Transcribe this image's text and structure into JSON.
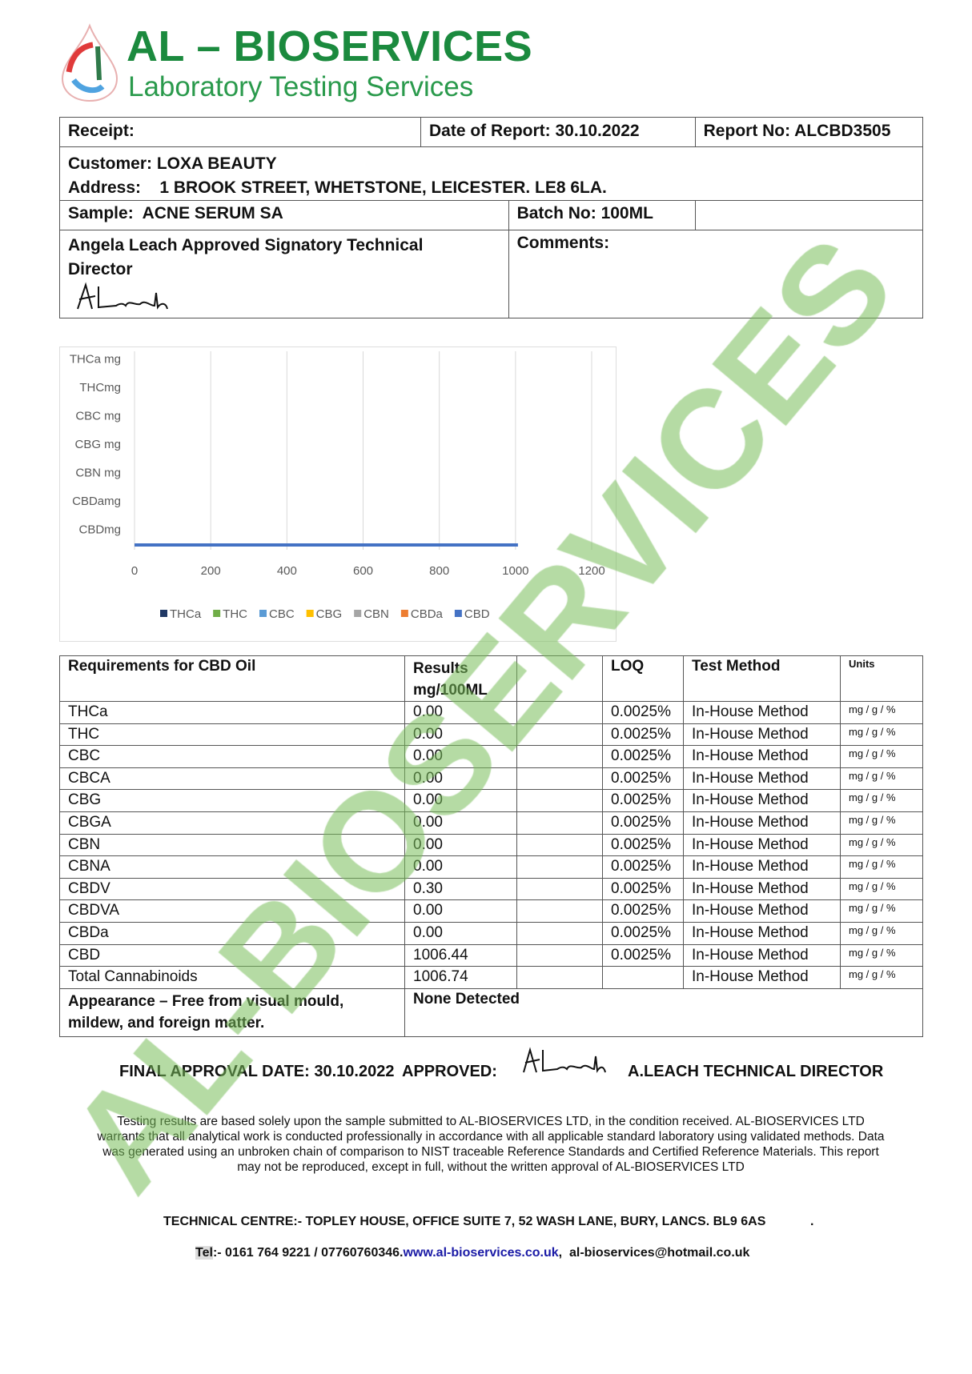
{
  "logo": {
    "title": "AL – BIOSERVICES",
    "subtitle": "Laboratory Testing Services"
  },
  "watermark": "AL-BIOSERVICES",
  "header": {
    "receipt": "Receipt:",
    "date_of_report": "Date of Report: 30.10.2022",
    "report_no": "Report No: ALCBD3505",
    "customer": "Customer: LOXA BEAUTY",
    "address": "Address:    1 BROOK STREET, WHETSTONE, LEICESTER. LE8 6LA.",
    "sample": "Sample:  ACNE SERUM SA",
    "batch_no": "Batch No: 100ML",
    "signatory": "Angela Leach Approved Signatory Technical Director",
    "signature": "ALeach",
    "comments": "Comments:"
  },
  "chart_data": {
    "type": "bar",
    "orientation": "horizontal",
    "categories": [
      "THCa mg",
      "THCmg",
      "CBC mg",
      "CBG mg",
      "CBN mg",
      "CBDamg",
      "CBDmg"
    ],
    "series": [
      {
        "name": "THCa",
        "color": "#1f3864",
        "values": [
          0,
          null,
          null,
          null,
          null,
          null,
          null
        ]
      },
      {
        "name": "THC",
        "color": "#70ad47",
        "values": [
          null,
          0,
          null,
          null,
          null,
          null,
          null
        ]
      },
      {
        "name": "CBC",
        "color": "#5b9bd5",
        "values": [
          null,
          null,
          0,
          null,
          null,
          null,
          null
        ]
      },
      {
        "name": "CBG",
        "color": "#ffc000",
        "values": [
          null,
          null,
          null,
          0,
          null,
          null,
          null
        ]
      },
      {
        "name": "CBN",
        "color": "#a5a5a5",
        "values": [
          null,
          null,
          null,
          null,
          0,
          null,
          null
        ]
      },
      {
        "name": "CBDa",
        "color": "#ed7d31",
        "values": [
          null,
          null,
          null,
          null,
          null,
          0,
          null
        ]
      },
      {
        "name": "CBD",
        "color": "#4472c4",
        "values": [
          null,
          null,
          null,
          null,
          null,
          null,
          1006.44
        ]
      }
    ],
    "xticks": [
      "0",
      "200",
      "400",
      "600",
      "800",
      "1000",
      "1200"
    ],
    "xlim": [
      0,
      1200
    ],
    "grid": true,
    "legend": "bottom"
  },
  "results": {
    "headers": [
      "Requirements for CBD Oil",
      "Results mg/100ML",
      "",
      "LOQ",
      "Test Method",
      "Units"
    ],
    "rows": [
      [
        "THCa",
        "0.00",
        "",
        "0.0025%",
        "In-House Method",
        "mg / g / %"
      ],
      [
        "THC",
        "0.00",
        "",
        "0.0025%",
        "In-House Method",
        "mg / g / %"
      ],
      [
        "CBC",
        "0.00",
        "",
        "0.0025%",
        "In-House Method",
        "mg / g / %"
      ],
      [
        "CBCA",
        "0.00",
        "",
        "0.0025%",
        "In-House Method",
        "mg / g / %"
      ],
      [
        "CBG",
        "0.00",
        "",
        "0.0025%",
        "In-House Method",
        "mg / g / %"
      ],
      [
        "CBGA",
        "0.00",
        "",
        "0.0025%",
        "In-House Method",
        "mg / g / %"
      ],
      [
        "CBN",
        "0.00",
        "",
        "0.0025%",
        "In-House Method",
        "mg / g / %"
      ],
      [
        "CBNA",
        "0.00",
        "",
        "0.0025%",
        "In-House Method",
        "mg / g / %"
      ],
      [
        "CBDV",
        "0.30",
        "",
        "0.0025%",
        "In-House Method",
        "mg / g / %"
      ],
      [
        "CBDVA",
        "0.00",
        "",
        "0.0025%",
        "In-House Method",
        "mg / g / %"
      ],
      [
        "CBDa",
        "0.00",
        "",
        "0.0025%",
        "In-House Method",
        "mg / g / %"
      ],
      [
        "CBD",
        "1006.44",
        "",
        "0.0025%",
        "In-House Method",
        "mg / g / %"
      ],
      [
        "Total Cannabinoids",
        "1006.74",
        "",
        "",
        "In-House Method",
        "mg / g / %"
      ]
    ],
    "appearance_label": "Appearance – Free from visual mould, mildew, and foreign matter.",
    "appearance_value": "None Detected"
  },
  "approval": {
    "date": "FINAL APPROVAL DATE: 30.10.2022",
    "approved": "APPROVED:",
    "signature": "ALeach",
    "name": "A.LEACH TECHNICAL DIRECTOR"
  },
  "disclaimer": "Testing results are based solely upon the sample submitted to AL-BIOSERVICES LTD, in the condition received. AL-BIOSERVICES LTD warrants that all analytical work is conducted professionally in accordance with all applicable standard laboratory using validated methods. Data was generated using an unbroken chain of comparison to NIST traceable Reference Standards and Certified Reference Materials. This report may not be reproduced, except in full, without the written approval of AL-BIOSERVICES LTD",
  "footer": {
    "technical_centre": "TECHNICAL CENTRE:- TOPLEY HOUSE, OFFICE SUITE 7, 52 WASH LANE, BURY, LANCS. BL9 6AS",
    "tel_label": "Tel",
    "tel": ":- 0161 764 9221 / 07760760346.",
    "website": "www.al-bioservices.co.uk",
    "email": ",  al-bioservices@hotmail.co.uk"
  }
}
